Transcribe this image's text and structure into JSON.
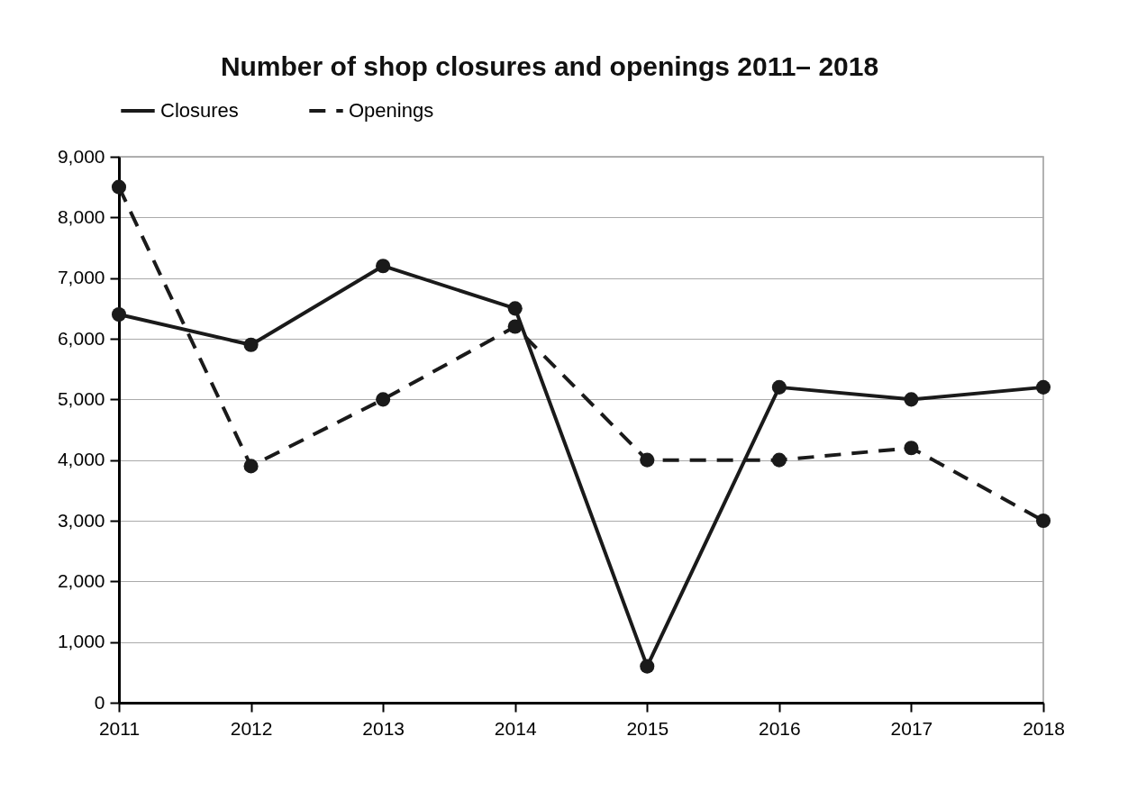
{
  "chart_data": {
    "type": "line",
    "title": "Number of shop closures and openings 2011– 2018",
    "categories": [
      "2011",
      "2012",
      "2013",
      "2014",
      "2015",
      "2016",
      "2017",
      "2018"
    ],
    "series": [
      {
        "name": "Closures",
        "color": "#1a1a1a",
        "line_style": "solid",
        "values": [
          6400,
          5900,
          7200,
          6500,
          600,
          5200,
          5000,
          5200
        ]
      },
      {
        "name": "Openings",
        "color": "#1a1a1a",
        "line_style": "dashed",
        "values": [
          8500,
          3900,
          5000,
          6200,
          4000,
          4000,
          4200,
          3000
        ]
      }
    ],
    "ylim": [
      0,
      9000
    ],
    "yticks": [
      0,
      {
        "value": 1000,
        "label": "1,000"
      },
      {
        "value": 2000,
        "label": "2,000"
      },
      {
        "value": 3000,
        "label": "3,000"
      },
      {
        "value": 4000,
        "label": "4,000"
      },
      {
        "value": 5000,
        "label": "5,000"
      },
      {
        "value": 6000,
        "label": "6,000"
      },
      {
        "value": 7000,
        "label": "7,000"
      },
      {
        "value": 8000,
        "label": "8,000"
      },
      {
        "value": 9000,
        "label": "9,000"
      }
    ],
    "grid": "y",
    "legend": "top",
    "marker": "circle"
  }
}
